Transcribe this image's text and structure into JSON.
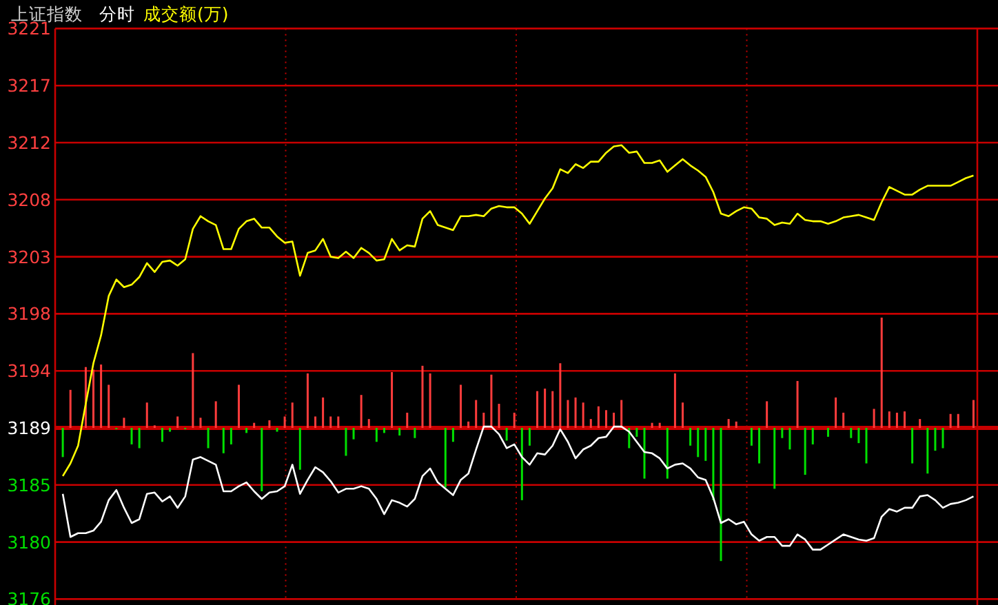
{
  "chart_data": {
    "type": "line",
    "title": "上证指数",
    "subtitle": "分时",
    "categories": [
      null,
      null,
      null,
      null,
      null,
      null,
      null,
      null,
      null,
      null,
      null,
      null,
      null,
      null,
      null,
      null,
      null,
      null,
      null,
      null,
      null,
      null,
      null,
      null,
      null,
      null,
      null,
      null,
      null,
      null,
      null,
      null,
      null,
      null,
      null,
      null,
      null,
      null,
      null,
      null,
      null,
      null,
      null,
      null,
      null,
      null,
      null,
      null,
      null,
      null,
      null,
      null,
      null,
      null,
      null,
      null,
      null,
      null,
      null,
      null,
      null,
      null,
      null,
      null,
      null,
      null,
      null,
      null,
      null,
      null,
      null,
      null,
      null,
      null,
      null,
      null,
      null,
      null,
      null,
      null,
      null,
      null,
      null,
      null,
      null,
      null,
      null,
      null,
      null,
      null,
      null,
      null,
      null,
      null,
      null,
      null,
      null,
      null,
      null,
      null,
      null,
      null,
      null,
      null,
      null,
      null,
      null,
      null,
      null,
      null,
      null,
      null,
      null,
      null,
      null,
      null,
      null,
      null,
      null,
      null
    ],
    "ylim": [
      3176,
      3221
    ],
    "yticks": [
      {
        "value": 3176,
        "label": "3176"
      },
      {
        "value": 3180.5,
        "label": "3180"
      },
      {
        "value": 3185,
        "label": "3185"
      },
      {
        "value": 3189.5,
        "label": "3189"
      },
      {
        "value": 3194,
        "label": "3194"
      },
      {
        "value": 3198.5,
        "label": "3198"
      },
      {
        "value": 3203,
        "label": "3203"
      },
      {
        "value": 3207.5,
        "label": "3208"
      },
      {
        "value": 3212,
        "label": "3212"
      },
      {
        "value": 3216.5,
        "label": "3217"
      },
      {
        "value": 3221,
        "label": "3221"
      }
    ],
    "grid": true,
    "legend": "top left",
    "ref_lines": [
      {
        "axis": "y",
        "value": 3189.5,
        "color": "#c80000"
      }
    ],
    "series": [
      {
        "type": "bar",
        "base": [
          3189.5,
          3189.5,
          null,
          3189.5,
          3189.5,
          3189.5,
          3189.5,
          3189.5,
          3189.5,
          3189.5,
          3189.5,
          3189.5,
          3189.5,
          3189.5,
          3189.5,
          3189.5,
          3189.5,
          3189.5,
          3189.5,
          3189.5,
          3189.5,
          3189.5,
          3189.5,
          3189.5,
          3189.5,
          3189.5,
          3189.5,
          3189.5,
          3189.5,
          3189.5,
          3189.5,
          3189.5,
          3189.5,
          3189.5,
          3189.5,
          3189.5,
          3189.5,
          3189.5,
          3189.5,
          3189.5,
          3189.5,
          3189.5,
          3189.5,
          3189.5,
          3189.5,
          3189.5,
          3189.5,
          3189.5,
          3189.5,
          null,
          3189.5,
          3189.5,
          3189.5,
          3189.5,
          3189.5,
          3189.5,
          3189.5,
          3189.5,
          3189.5,
          3189.5,
          3189.5,
          3189.5,
          3189.5,
          3189.5,
          3189.5,
          3189.5,
          3189.5,
          3189.5,
          3189.5,
          3189.5,
          3189.5,
          3189.5,
          3189.5,
          3189.5,
          3189.5,
          3189.5,
          3189.5,
          3189.5,
          3189.5,
          3189.5,
          3189.5,
          3189.5,
          3189.5,
          3189.5,
          3189.5,
          3189.5,
          3189.5,
          3189.5,
          3189.5,
          null,
          3189.5,
          3189.5,
          3189.5,
          3189.5,
          3189.5,
          3189.5,
          3189.5,
          3189.5,
          3189.5,
          null,
          3189.5,
          3189.5,
          3189.5,
          3189.5,
          3189.5,
          3189.5,
          3189.5,
          3189.5,
          3189.5,
          3189.5,
          3189.5,
          3189.5,
          3189.5,
          3189.5,
          3189.5,
          3189.5,
          3189.5,
          3189.5,
          null,
          3189.5
        ],
        "values": [
          -2.3,
          3.0,
          null,
          4.8,
          4.6,
          5.0,
          3.4,
          -0.1,
          0.8,
          -1.3,
          -1.6,
          2.0,
          0.2,
          -1.1,
          -0.3,
          0.9,
          -0.1,
          5.9,
          0.8,
          -1.6,
          2.1,
          -2.0,
          -1.3,
          3.4,
          -0.4,
          0.4,
          -5.0,
          0.6,
          -0.3,
          0.9,
          2.0,
          -3.3,
          4.3,
          0.9,
          2.4,
          0.9,
          0.9,
          -2.2,
          -0.9,
          2.6,
          0.7,
          -1.1,
          -0.4,
          4.4,
          -0.6,
          1.2,
          -0.8,
          4.9,
          4.3,
          null,
          -4.7,
          -1.1,
          3.4,
          0.5,
          2.2,
          1.2,
          4.2,
          1.9,
          -1.0,
          1.2,
          -5.7,
          -1.4,
          2.9,
          3.1,
          2.9,
          5.1,
          2.2,
          2.4,
          2.0,
          0.7,
          1.7,
          1.4,
          1.2,
          2.2,
          -1.6,
          -0.7,
          -4.0,
          0.4,
          0.4,
          -4.0,
          4.3,
          2.0,
          -1.4,
          -2.3,
          -2.6,
          -5.7,
          -10.5,
          0.7,
          0.5,
          null,
          -1.4,
          -2.8,
          2.1,
          -4.8,
          -0.8,
          -1.7,
          3.7,
          -3.7,
          -1.3,
          null,
          -0.7,
          2.4,
          1.2,
          -0.8,
          -1.2,
          -2.8,
          1.5,
          8.7,
          1.3,
          1.2,
          1.3,
          -2.8,
          0.7,
          -3.6,
          -1.8,
          -1.6,
          1.1,
          1.1,
          null,
          2.2
        ],
        "colors": [
          "#00e000",
          "#ff3c3c",
          null,
          "#ff3c3c",
          "#ff3c3c",
          "#ff3c3c",
          "#ff3c3c",
          "#00e000",
          "#ff3c3c",
          "#00e000",
          "#00e000",
          "#ff3c3c",
          "#ff3c3c",
          "#00e000",
          "#00e000",
          "#ff3c3c",
          "#00e000",
          "#ff3c3c",
          "#ff3c3c",
          "#00e000",
          "#ff3c3c",
          "#00e000",
          "#00e000",
          "#ff3c3c",
          "#00e000",
          "#ff3c3c",
          "#00e000",
          "#ff3c3c",
          "#00e000",
          "#ff3c3c",
          "#ff3c3c",
          "#00e000",
          "#ff3c3c",
          "#ff3c3c",
          "#ff3c3c",
          "#ff3c3c",
          "#ff3c3c",
          "#00e000",
          "#00e000",
          "#ff3c3c",
          "#ff3c3c",
          "#00e000",
          "#00e000",
          "#ff3c3c",
          "#00e000",
          "#ff3c3c",
          "#00e000",
          "#ff3c3c",
          "#ff3c3c",
          null,
          "#00e000",
          "#00e000",
          "#ff3c3c",
          "#ff3c3c",
          "#ff3c3c",
          "#ff3c3c",
          "#ff3c3c",
          "#ff3c3c",
          "#00e000",
          "#ff3c3c",
          "#00e000",
          "#00e000",
          "#ff3c3c",
          "#ff3c3c",
          "#ff3c3c",
          "#ff3c3c",
          "#ff3c3c",
          "#ff3c3c",
          "#ff3c3c",
          "#ff3c3c",
          "#ff3c3c",
          "#ff3c3c",
          "#ff3c3c",
          "#ff3c3c",
          "#00e000",
          "#00e000",
          "#00e000",
          "#ff3c3c",
          "#ff3c3c",
          "#00e000",
          "#ff3c3c",
          "#ff3c3c",
          "#00e000",
          "#00e000",
          "#00e000",
          "#00e000",
          "#00e000",
          "#ff3c3c",
          "#ff3c3c",
          null,
          "#00e000",
          "#00e000",
          "#ff3c3c",
          "#00e000",
          "#00e000",
          "#00e000",
          "#ff3c3c",
          "#00e000",
          "#00e000",
          null,
          "#00e000",
          "#ff3c3c",
          "#ff3c3c",
          "#00e000",
          "#00e000",
          "#00e000",
          "#ff3c3c",
          "#ff3c3c",
          "#ff3c3c",
          "#ff3c3c",
          "#ff3c3c",
          "#00e000",
          "#ff3c3c",
          "#00e000",
          "#00e000",
          "#00e000",
          "#ff3c3c",
          "#ff3c3c",
          null,
          "#ff3c3c"
        ]
      },
      {
        "name": "成交额(万)",
        "color": "#ffff00",
        "values": [
          3185.7,
          3186.7,
          3188.1,
          3191.4,
          3194.6,
          3196.8,
          3199.9,
          3201.2,
          3200.6,
          3200.8,
          3201.4,
          3202.5,
          3201.8,
          3202.6,
          3202.7,
          3202.3,
          3202.8,
          3205.2,
          3206.2,
          3205.8,
          3205.5,
          3203.6,
          3203.6,
          3205.2,
          3205.8,
          3206.0,
          3205.3,
          3205.3,
          3204.6,
          3204.1,
          3204.2,
          3201.5,
          3203.3,
          3203.5,
          3204.4,
          3203.0,
          3202.9,
          3203.4,
          3202.9,
          3203.7,
          3203.3,
          3202.7,
          3202.8,
          3204.4,
          3203.5,
          3203.9,
          3203.8,
          3206.0,
          3206.6,
          3205.5,
          3205.3,
          3205.1,
          3206.2,
          3206.2,
          3206.3,
          3206.2,
          3206.8,
          3207.0,
          3206.9,
          3206.9,
          3206.4,
          3205.6,
          3206.6,
          3207.6,
          3208.4,
          3209.9,
          3209.6,
          3210.3,
          3210.0,
          3210.5,
          3210.5,
          3211.2,
          3211.7,
          3211.8,
          3211.2,
          3211.3,
          3210.4,
          3210.4,
          3210.6,
          3209.7,
          3210.2,
          3210.7,
          3210.2,
          3209.8,
          3209.3,
          3208.1,
          3206.4,
          3206.2,
          3206.6,
          3206.9,
          3206.8,
          3206.1,
          3206.0,
          3205.5,
          3205.7,
          3205.6,
          3206.4,
          3205.9,
          3205.8,
          3205.8,
          3205.6,
          3205.8,
          3206.1,
          3206.2,
          3206.3,
          3206.1,
          3205.9,
          3207.3,
          3208.5,
          3208.2,
          3207.9,
          3207.9,
          3208.3,
          3208.6,
          3208.6,
          3208.6,
          3208.6,
          3208.9,
          3209.2,
          3209.4
        ]
      },
      {
        "color": "#ffffff",
        "values": [
          3184.3,
          3180.9,
          3181.2,
          3181.2,
          3181.4,
          3182.1,
          3183.8,
          3184.6,
          3183.2,
          3182.0,
          3182.3,
          3184.3,
          3184.4,
          3183.7,
          3184.1,
          3183.2,
          3184.1,
          3187.0,
          3187.2,
          3186.9,
          3186.6,
          3184.5,
          3184.5,
          3184.9,
          3185.2,
          3184.5,
          3183.9,
          3184.4,
          3184.5,
          3184.9,
          3186.6,
          3184.3,
          3185.4,
          3186.4,
          3186.0,
          3185.3,
          3184.4,
          3184.7,
          3184.7,
          3184.9,
          3184.7,
          3183.9,
          3182.7,
          3183.8,
          3183.6,
          3183.3,
          3183.9,
          3185.7,
          3186.3,
          3185.2,
          3184.7,
          3184.2,
          3185.4,
          3185.9,
          3187.8,
          3189.6,
          3189.6,
          3189.0,
          3187.9,
          3188.2,
          3187.2,
          3186.6,
          3187.5,
          3187.4,
          3188.1,
          3189.4,
          3188.4,
          3187.1,
          3187.8,
          3188.1,
          3188.7,
          3188.8,
          3189.6,
          3189.6,
          3189.2,
          3188.4,
          3187.6,
          3187.5,
          3187.1,
          3186.3,
          3186.6,
          3186.7,
          3186.3,
          3185.6,
          3185.4,
          3184.0,
          3182.0,
          3182.3,
          3181.9,
          3182.1,
          3181.1,
          3180.6,
          3180.9,
          3180.9,
          3180.2,
          3180.2,
          3181.1,
          3180.7,
          3179.9,
          3179.9,
          3180.3,
          3180.7,
          3181.1,
          3180.9,
          3180.7,
          3180.6,
          3180.8,
          3182.5,
          3183.1,
          3182.9,
          3183.2,
          3183.2,
          3184.1,
          3184.2,
          3183.8,
          3183.2,
          3183.5,
          3183.6,
          3183.8,
          3184.1
        ]
      }
    ]
  }
}
